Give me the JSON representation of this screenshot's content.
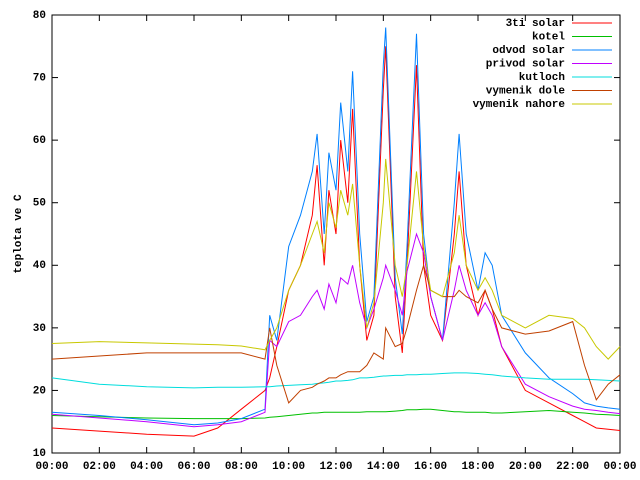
{
  "chart_data": {
    "type": "line",
    "y_label": "teplota ve C",
    "xlim": [
      0,
      24
    ],
    "xticks": [
      {
        "value": 0,
        "label": "00:00"
      },
      {
        "value": 2,
        "label": "02:00"
      },
      {
        "value": 4,
        "label": "04:00"
      },
      {
        "value": 6,
        "label": "06:00"
      },
      {
        "value": 8,
        "label": "08:00"
      },
      {
        "value": 10,
        "label": "10:00"
      },
      {
        "value": 12,
        "label": "12:00"
      },
      {
        "value": 14,
        "label": "14:00"
      },
      {
        "value": 16,
        "label": "16:00"
      },
      {
        "value": 18,
        "label": "18:00"
      },
      {
        "value": 20,
        "label": "20:00"
      },
      {
        "value": 22,
        "label": "22:00"
      },
      {
        "value": 24,
        "label": "00:00"
      }
    ],
    "ylim": [
      10,
      80
    ],
    "yticks": [
      10,
      20,
      30,
      40,
      50,
      60,
      70,
      80
    ],
    "legend": "top-right",
    "grid": false,
    "x": [
      0,
      2,
      4,
      6,
      7,
      8,
      9,
      9.2,
      9.5,
      10,
      10.5,
      11,
      11.2,
      11.5,
      11.7,
      12,
      12.2,
      12.5,
      12.7,
      13,
      13.3,
      13.6,
      14,
      14.1,
      14.5,
      14.8,
      15,
      15.4,
      15.7,
      16,
      16.5,
      17,
      17.2,
      17.5,
      18,
      18.3,
      18.6,
      19,
      20,
      21,
      22,
      22.5,
      23,
      23.5,
      24
    ],
    "series": [
      {
        "name": "3ti solar",
        "color": "#ff0000",
        "values": [
          14,
          13.5,
          13,
          12.7,
          14,
          17,
          20,
          22,
          27,
          36,
          40,
          48,
          56,
          40,
          52,
          45,
          60,
          50,
          65,
          40,
          28,
          32,
          68,
          75,
          35,
          26,
          40,
          72,
          40,
          32,
          28,
          45,
          55,
          40,
          32,
          36,
          33,
          27,
          20,
          18,
          16,
          15,
          14,
          13.8,
          13.6
        ]
      },
      {
        "name": "kotel",
        "color": "#00c000",
        "values": [
          16,
          15.8,
          15.6,
          15.5,
          15.5,
          15.5,
          15.6,
          15.7,
          15.8,
          16,
          16.2,
          16.4,
          16.4,
          16.5,
          16.5,
          16.5,
          16.5,
          16.5,
          16.5,
          16.5,
          16.6,
          16.6,
          16.6,
          16.6,
          16.7,
          16.8,
          16.9,
          16.9,
          17,
          17,
          16.8,
          16.6,
          16.6,
          16.5,
          16.5,
          16.5,
          16.4,
          16.4,
          16.6,
          16.8,
          16.5,
          16.4,
          16.2,
          16.1,
          16
        ]
      },
      {
        "name": "odvod solar",
        "color": "#0080ff",
        "values": [
          16.5,
          16,
          15.3,
          14.5,
          14.8,
          15.5,
          17,
          32,
          28,
          43,
          48,
          55,
          61,
          45,
          58,
          52,
          66,
          55,
          71,
          45,
          31,
          35,
          72,
          78,
          38,
          29,
          43,
          77,
          45,
          35,
          28,
          50,
          61,
          45,
          36,
          42,
          40,
          32,
          26,
          22,
          19.5,
          18,
          17.5,
          17.2,
          17
        ]
      },
      {
        "name": "privod solar",
        "color": "#c000ff",
        "values": [
          16.2,
          15.6,
          15,
          14.2,
          14.5,
          15,
          16.5,
          28,
          27,
          31,
          32,
          35,
          36,
          33,
          37,
          34,
          38,
          37,
          40,
          34,
          30,
          33,
          38,
          40,
          36,
          32,
          39,
          45,
          42,
          35,
          28,
          36,
          40,
          36,
          32,
          34,
          32,
          27,
          21,
          19,
          17.5,
          17,
          16.8,
          16.5,
          16.3
        ]
      },
      {
        "name": "kutloch",
        "color": "#00dddd",
        "values": [
          22,
          21,
          20.6,
          20.4,
          20.5,
          20.5,
          20.6,
          20.6,
          20.7,
          20.8,
          20.9,
          21,
          21.1,
          21.2,
          21.3,
          21.5,
          21.5,
          21.6,
          21.7,
          22,
          22,
          22.1,
          22.3,
          22.3,
          22.4,
          22.4,
          22.5,
          22.5,
          22.6,
          22.6,
          22.7,
          22.8,
          22.8,
          22.8,
          22.7,
          22.6,
          22.5,
          22.3,
          22,
          21.8,
          21.8,
          21.8,
          21.7,
          21.6,
          21.5
        ]
      },
      {
        "name": "vymenik dole",
        "color": "#c04000",
        "values": [
          25,
          25.5,
          26,
          26,
          26,
          26,
          25,
          30,
          24,
          18,
          20,
          20.5,
          21,
          21.5,
          22,
          22,
          22.5,
          23,
          23,
          23,
          24,
          26,
          25,
          30,
          27,
          27.5,
          30,
          36,
          40,
          36,
          35,
          35,
          36,
          35,
          34,
          36,
          33,
          30,
          29,
          29.5,
          31,
          24,
          18.5,
          21,
          22.5
        ]
      },
      {
        "name": "vymenik nahore",
        "color": "#c8c800",
        "values": [
          27.5,
          27.8,
          27.6,
          27.4,
          27.3,
          27.1,
          26.5,
          28,
          30,
          36,
          40,
          45,
          47,
          42,
          50,
          46,
          52,
          48,
          53,
          40,
          30,
          34,
          50,
          57,
          40,
          35,
          40,
          55,
          43,
          36,
          35,
          42,
          48,
          40,
          36,
          38,
          36,
          32,
          30,
          32,
          31.5,
          30,
          27,
          25,
          27
        ]
      }
    ]
  }
}
